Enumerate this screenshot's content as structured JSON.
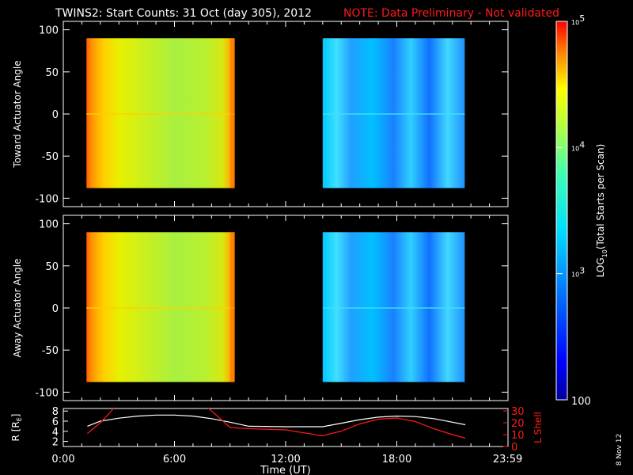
{
  "title": {
    "main": "TWINS2: Start Counts: 31 Oct (day 305), 2012",
    "note": "NOTE: Data Preliminary - Not validated"
  },
  "stamp": "8 Nov 12",
  "colors": {
    "background": "#000000",
    "axes": "#ffffff",
    "ephemeris_r": "#ffffff",
    "ephemeris_lshell": "#ff1a1a",
    "note": "#ff1a1a"
  },
  "chart_data": [
    {
      "type": "heatmap",
      "ylabel": "Toward Actuator Angle",
      "ylim": [
        -110,
        110
      ],
      "yticks": [
        "100",
        "50",
        "0",
        "-50",
        "-100"
      ],
      "xlim_hours": [
        0,
        24
      ],
      "data_blocks": [
        {
          "t_start": "01:15",
          "t_end": "09:15",
          "angle_range": [
            -88,
            90
          ],
          "dominant_log10": 3.8
        },
        {
          "t_start": "14:00",
          "t_end": "21:40",
          "angle_range": [
            -88,
            90
          ],
          "dominant_log10": 3.1
        }
      ]
    },
    {
      "type": "heatmap",
      "ylabel": "Away Actuator Angle",
      "ylim": [
        -110,
        110
      ],
      "yticks": [
        "100",
        "50",
        "0",
        "-50",
        "-100"
      ],
      "xlim_hours": [
        0,
        24
      ],
      "data_blocks": [
        {
          "t_start": "01:15",
          "t_end": "09:15",
          "angle_range": [
            -88,
            90
          ],
          "dominant_log10": 3.8
        },
        {
          "t_start": "14:00",
          "t_end": "21:40",
          "angle_range": [
            -88,
            90
          ],
          "dominant_log10": 3.1
        }
      ]
    },
    {
      "type": "colorbar",
      "label": "LOG10(Total Starts per Scan)",
      "label_parts": {
        "pre": "LOG",
        "sub": "10",
        "post": "(Total Starts per Scan)"
      },
      "scale": "log",
      "range": [
        100,
        100000
      ],
      "tick_labels": [
        {
          "value": 100000,
          "base": "10",
          "exp": "5"
        },
        {
          "value": 10000,
          "base": "10",
          "exp": "4"
        },
        {
          "value": 1000,
          "base": "10",
          "exp": "3"
        },
        {
          "value": 100,
          "base": "100",
          "exp": ""
        }
      ]
    },
    {
      "type": "line",
      "xlabel": "Time (UT)",
      "xticks": [
        {
          "h": 0,
          "label": "0:00"
        },
        {
          "h": 6,
          "label": "6:00"
        },
        {
          "h": 12,
          "label": "12:00"
        },
        {
          "h": 18,
          "label": "18:00"
        },
        {
          "h": 23.983,
          "label": "23:59"
        }
      ],
      "left_axis": {
        "label_pre": "R [R",
        "label_sub": "E",
        "label_post": "]",
        "ylim": [
          1,
          8.5
        ],
        "ticks": [
          "8",
          "6",
          "4",
          "2"
        ]
      },
      "right_axis": {
        "label": "L Shell",
        "ylim": [
          0,
          32
        ],
        "ticks": [
          "30",
          "20",
          "10",
          "0"
        ]
      },
      "series": [
        {
          "axis": "left",
          "x": [
            1.3,
            2.0,
            3.0,
            4.0,
            5.0,
            6.0,
            7.0,
            8.0,
            9.0,
            10.0,
            12.0,
            14.0,
            15.0,
            16.0,
            17.0,
            18.0,
            19.0,
            20.0,
            21.0,
            21.7
          ],
          "y": [
            5.0,
            6.0,
            6.6,
            7.0,
            7.2,
            7.2,
            7.0,
            6.5,
            5.8,
            5.0,
            4.9,
            4.9,
            5.6,
            6.3,
            6.8,
            7.0,
            6.9,
            6.5,
            5.8,
            5.3
          ]
        },
        {
          "axis": "right",
          "x": [
            1.3,
            2.0,
            2.6,
            2.8,
            7.7,
            8.0,
            9.0,
            10.0,
            12.0,
            14.0,
            15.0,
            16.0,
            17.0,
            18.0,
            19.0,
            20.0,
            21.0,
            21.7
          ],
          "y": [
            11,
            20,
            30,
            34,
            34,
            30,
            16,
            15,
            14,
            9,
            13,
            19,
            23,
            24,
            21,
            15,
            10,
            7
          ]
        }
      ]
    }
  ]
}
